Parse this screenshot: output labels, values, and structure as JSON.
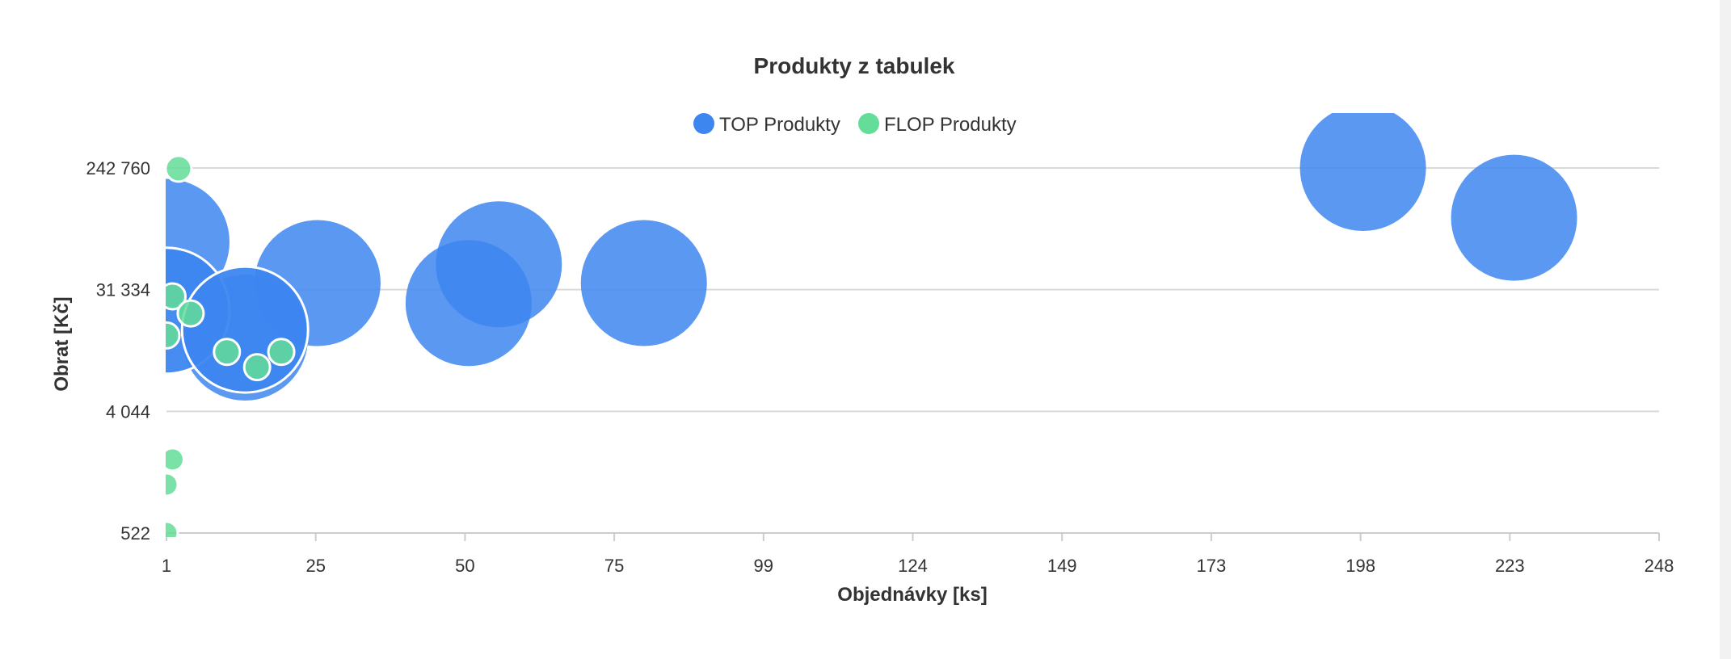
{
  "colors": {
    "top": "#3d86f0",
    "flop": "#63dd98",
    "grid": "#d9d9d9",
    "text": "#333333",
    "bubble_outline": "#ffffff"
  },
  "chart_data": {
    "type": "scatter",
    "subtype": "bubble",
    "title": "Produkty z tabulek",
    "xlabel": "Objednávky [ks]",
    "ylabel": "Obrat [Kč]",
    "xlim": [
      1,
      248
    ],
    "ylim": [
      522,
      242760
    ],
    "yscale": "log",
    "grid": "horizontal",
    "legend_position": "top-center",
    "x_ticks": [
      "1",
      "25",
      "50",
      "75",
      "99",
      "124",
      "149",
      "173",
      "198",
      "223",
      "248"
    ],
    "y_ticks": [
      {
        "value": 522,
        "label": "522"
      },
      {
        "value": 4044,
        "label": "4 044"
      },
      {
        "value": 31334,
        "label": "31 334"
      },
      {
        "value": 242760,
        "label": "242 760"
      }
    ],
    "series": [
      {
        "name": "TOP Produkty",
        "color_key": "top",
        "points": [
          {
            "x": 1,
            "y": 70000,
            "size": 78
          },
          {
            "x": 26,
            "y": 35000,
            "size": 78
          },
          {
            "x": 51,
            "y": 25000,
            "size": 78
          },
          {
            "x": 56,
            "y": 48000,
            "size": 78
          },
          {
            "x": 80,
            "y": 35000,
            "size": 78
          },
          {
            "x": 199,
            "y": 242760,
            "size": 78
          },
          {
            "x": 224,
            "y": 105000,
            "size": 78
          },
          {
            "x": 14,
            "y": 14000,
            "size": 78
          },
          {
            "x": 1,
            "y": 22000,
            "size": 78,
            "outlined": true
          },
          {
            "x": 14,
            "y": 16000,
            "size": 78,
            "outlined": true
          }
        ]
      },
      {
        "name": "FLOP Produkty",
        "color_key": "flop",
        "points": [
          {
            "x": 3,
            "y": 240000,
            "size": 16
          },
          {
            "x": 2,
            "y": 28000,
            "size": 16
          },
          {
            "x": 5,
            "y": 21000,
            "size": 16
          },
          {
            "x": 1,
            "y": 14500,
            "size": 16
          },
          {
            "x": 11,
            "y": 11000,
            "size": 16
          },
          {
            "x": 20,
            "y": 11000,
            "size": 16
          },
          {
            "x": 16,
            "y": 8500,
            "size": 16
          },
          {
            "x": 2,
            "y": 1800,
            "size": 14
          },
          {
            "x": 1,
            "y": 1180,
            "size": 14
          },
          {
            "x": 1,
            "y": 522,
            "size": 14
          }
        ]
      }
    ]
  }
}
